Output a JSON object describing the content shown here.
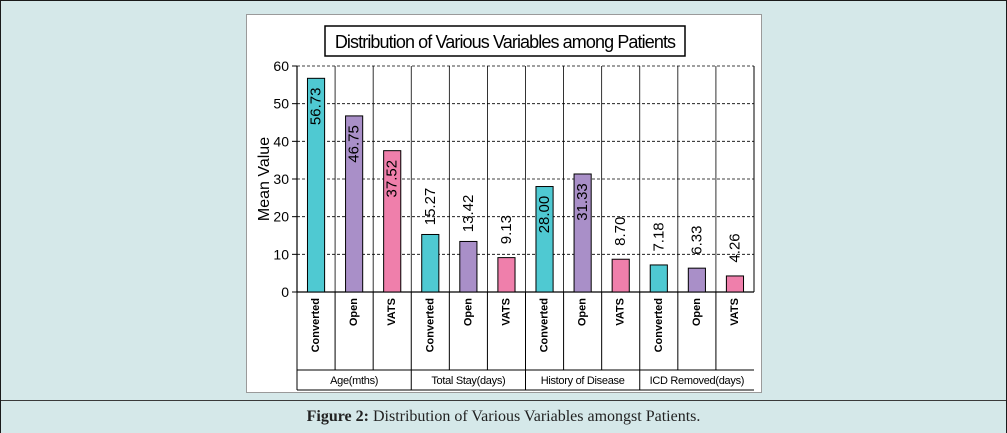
{
  "caption": {
    "label": "Figure 2:",
    "text": "Distribution of Various Variables amongst Patients."
  },
  "colors": {
    "Converted": "#4fc9d2",
    "Open": "#a98fc8",
    "VATS": "#ef7fab",
    "background": "#d5e8e9"
  },
  "chart_data": {
    "type": "bar",
    "title": "Distribution of Various Variables among Patients",
    "ylabel": "Mean Value",
    "xlabel": "",
    "ylim": [
      0,
      60
    ],
    "yticks": [
      0,
      10,
      20,
      30,
      40,
      50,
      60
    ],
    "grid": true,
    "legend": "none",
    "groups": [
      {
        "name": "Age(mths)",
        "bars": [
          {
            "label": "Converted",
            "value": 56.73,
            "value_text": "56.73"
          },
          {
            "label": "Open",
            "value": 46.75,
            "value_text": "46.75"
          },
          {
            "label": "VATS",
            "value": 37.52,
            "value_text": "37.52"
          }
        ]
      },
      {
        "name": "Total Stay(days)",
        "bars": [
          {
            "label": "Converted",
            "value": 15.27,
            "value_text": "15.27"
          },
          {
            "label": "Open",
            "value": 13.42,
            "value_text": "13.42"
          },
          {
            "label": "VATS",
            "value": 9.13,
            "value_text": "9.13"
          }
        ]
      },
      {
        "name": "History of Disease",
        "bars": [
          {
            "label": "Converted",
            "value": 28.0,
            "value_text": "28.00"
          },
          {
            "label": "Open",
            "value": 31.33,
            "value_text": "31.33"
          },
          {
            "label": "VATS",
            "value": 8.7,
            "value_text": "8.70"
          }
        ]
      },
      {
        "name": "ICD Removed(days)",
        "bars": [
          {
            "label": "Converted",
            "value": 7.18,
            "value_text": "7.18"
          },
          {
            "label": "Open",
            "value": 6.33,
            "value_text": "6.33"
          },
          {
            "label": "VATS",
            "value": 4.26,
            "value_text": "4.26"
          }
        ]
      }
    ]
  }
}
